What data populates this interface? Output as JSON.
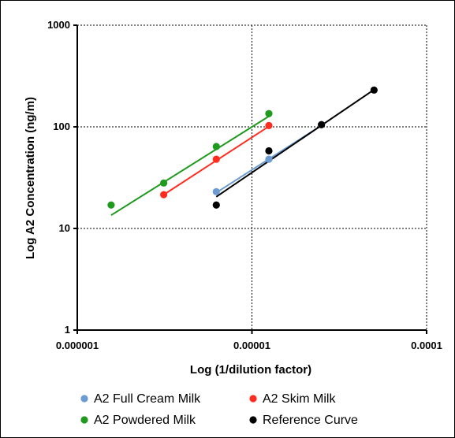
{
  "chart_data": {
    "type": "scatter",
    "title": "",
    "xlabel": "Log (1/dilution factor)",
    "ylabel": "Log A2 Concentration (ng/m)",
    "xscale": "log",
    "yscale": "log",
    "xlim": [
      1e-06,
      0.0001
    ],
    "ylim": [
      1,
      1000
    ],
    "xticks": [
      "0.000001",
      "0.00001",
      "0.0001"
    ],
    "yticks": [
      "1",
      "10",
      "100",
      "1000"
    ],
    "grid": "dashed",
    "legend_position": "bottom",
    "series": [
      {
        "name": "A2 Full Cream Milk",
        "color": "#6b9bd1",
        "points": [
          [
            6.25e-06,
            23
          ],
          [
            1.25e-05,
            48
          ],
          [
            2.5e-05,
            105
          ]
        ],
        "trend": [
          [
            6.25e-06,
            22.5
          ],
          [
            2.5e-05,
            103
          ]
        ]
      },
      {
        "name": "A2 Skim Milk",
        "color": "#ff2d1f",
        "points": [
          [
            3.125e-06,
            21.5
          ],
          [
            6.25e-06,
            48
          ],
          [
            1.25e-05,
            103
          ]
        ],
        "trend": [
          [
            3.125e-06,
            21.5
          ],
          [
            1.25e-05,
            101
          ]
        ]
      },
      {
        "name": "A2 Powdered Milk",
        "color": "#1f9a1f",
        "points": [
          [
            1.5625e-06,
            17
          ],
          [
            3.125e-06,
            28
          ],
          [
            6.25e-06,
            64
          ],
          [
            1.25e-05,
            135
          ]
        ],
        "trend": [
          [
            1.5625e-06,
            13.5
          ],
          [
            1.25e-05,
            127
          ]
        ]
      },
      {
        "name": "Reference Curve",
        "color": "#000000",
        "points": [
          [
            6.25e-06,
            17
          ],
          [
            1.25e-05,
            58
          ],
          [
            2.5e-05,
            105
          ],
          [
            5e-05,
            230
          ]
        ],
        "trend": [
          [
            6.25e-06,
            20.5
          ],
          [
            5e-05,
            232
          ]
        ]
      }
    ]
  }
}
